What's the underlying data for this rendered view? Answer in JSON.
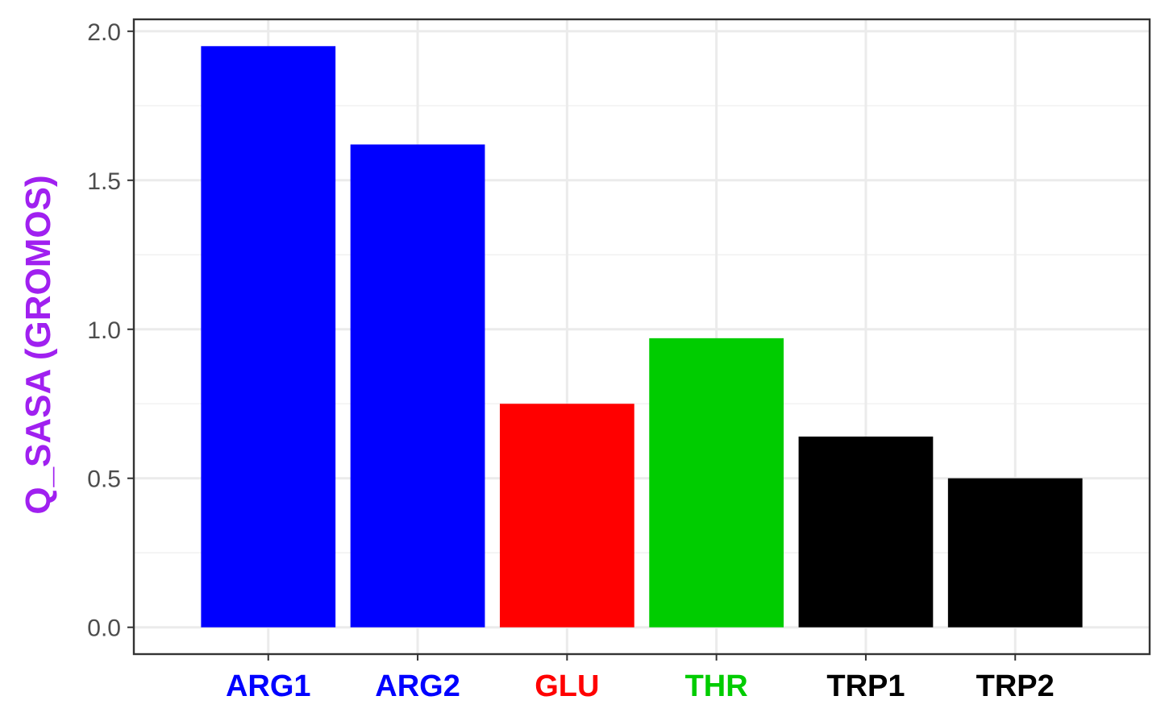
{
  "chart_data": {
    "type": "bar",
    "categories": [
      "ARG1",
      "ARG2",
      "GLU",
      "THR",
      "TRP1",
      "TRP2"
    ],
    "values": [
      1.95,
      1.62,
      0.75,
      0.97,
      0.64,
      0.5
    ],
    "bar_colors": [
      "#0000ff",
      "#0000ff",
      "#ff0000",
      "#00cc00",
      "#000000",
      "#000000"
    ],
    "category_label_colors": [
      "#0000ff",
      "#0000ff",
      "#ff0000",
      "#00cc00",
      "#000000",
      "#000000"
    ],
    "title": "",
    "xlabel": "",
    "ylabel": "Q_SASA (GROMOS)",
    "ylabel_color": "#a020f0",
    "ylim": [
      -0.09,
      2.04
    ],
    "yticks": [
      "0.0",
      "0.5",
      "1.0",
      "1.5",
      "2.0"
    ],
    "grid": true,
    "legend": "none"
  }
}
